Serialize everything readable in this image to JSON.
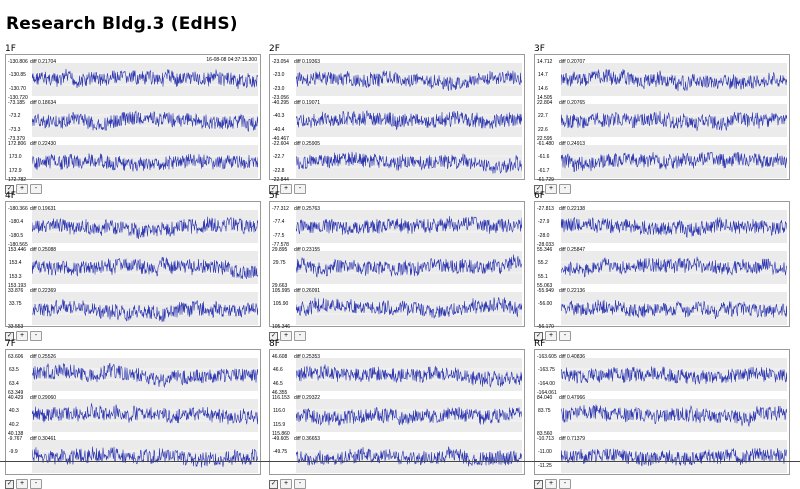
{
  "page": {
    "title": "Research Bldg.3 (EdHS)"
  },
  "colors": {
    "series": "#2d36b0",
    "panel_bg": "#ebebeb",
    "border": "#9a9a9a"
  },
  "controls": {
    "checkbox": "✓",
    "plus": "+",
    "minus": "-"
  },
  "floors": [
    {
      "label": "1F",
      "timestamp": "16-08-08 04:37:15.300",
      "rows": [
        {
          "top": "-130.806",
          "diff": "diff 0.21704",
          "labels": [
            "-130.85",
            "-130.70"
          ],
          "bottom": "-130.720"
        },
        {
          "top": "-73.185",
          "diff": "diff 0.18634",
          "labels": [
            "-73.2",
            "-73.3"
          ],
          "bottom": "-73.379"
        },
        {
          "top": "172.806",
          "diff": "diff 0.22430",
          "labels": [
            "173.0",
            "172.9"
          ],
          "bottom": "172.782"
        }
      ]
    },
    {
      "label": "2F",
      "timestamp": "",
      "rows": [
        {
          "top": "-23.054",
          "diff": "diff 0.19363",
          "labels": [
            "-23.0",
            "-23.0"
          ],
          "bottom": "-23.056"
        },
        {
          "top": "-40.295",
          "diff": "diff 0.19071",
          "labels": [
            "-40.3",
            "-40.4"
          ],
          "bottom": "-40.467"
        },
        {
          "top": "-22.604",
          "diff": "diff 0.25905",
          "labels": [
            "-22.7",
            "-22.8"
          ],
          "bottom": "-22.844"
        }
      ]
    },
    {
      "label": "3F",
      "timestamp": "",
      "rows": [
        {
          "top": "14.712",
          "diff": "diff 0.20707",
          "labels": [
            "14.7",
            "14.6"
          ],
          "bottom": "14.505"
        },
        {
          "top": "22.804",
          "diff": "diff 0.20765",
          "labels": [
            "22.7",
            "22.6"
          ],
          "bottom": "22.595"
        },
        {
          "top": "-61.480",
          "diff": "diff 0.24913",
          "labels": [
            "-61.6",
            "-61.7"
          ],
          "bottom": "-61.729"
        }
      ]
    },
    {
      "label": "4F",
      "timestamp": "",
      "rows": [
        {
          "top": "-180.366",
          "diff": "diff 0.19631",
          "labels": [
            "-180.4",
            "-180.5"
          ],
          "bottom": "-180.565"
        },
        {
          "top": "153.446",
          "diff": "diff 0.25088",
          "labels": [
            "153.4",
            "153.3"
          ],
          "bottom": "153.193"
        },
        {
          "top": "33.876",
          "diff": "diff 0.22369",
          "labels": [
            "33.75",
            ""
          ],
          "bottom": "33.553"
        }
      ]
    },
    {
      "label": "5F",
      "timestamp": "",
      "rows": [
        {
          "top": "-77.312",
          "diff": "diff 0.25763",
          "labels": [
            "-77.4",
            "-77.5"
          ],
          "bottom": "-77.578"
        },
        {
          "top": "29.895",
          "diff": "diff 0.23155",
          "labels": [
            "29.75",
            ""
          ],
          "bottom": "29.663"
        },
        {
          "top": "105.995",
          "diff": "diff 0.26091",
          "labels": [
            "105.90",
            ""
          ],
          "bottom": "105.346"
        }
      ]
    },
    {
      "label": "6F",
      "timestamp": "",
      "rows": [
        {
          "top": "-27.813",
          "diff": "diff 0.22138",
          "labels": [
            "-27.9",
            "-28.0"
          ],
          "bottom": "-28.033"
        },
        {
          "top": "55.346",
          "diff": "diff 0.25847",
          "labels": [
            "55.2",
            "55.1"
          ],
          "bottom": "55.063"
        },
        {
          "top": "-55.949",
          "diff": "diff 0.22136",
          "labels": [
            "-56.00",
            ""
          ],
          "bottom": "-56.170"
        }
      ]
    },
    {
      "label": "7F",
      "timestamp": "",
      "rows": [
        {
          "top": "63.606",
          "diff": "diff 0.25526",
          "labels": [
            "63.5",
            "63.4"
          ],
          "bottom": "63.349"
        },
        {
          "top": "40.429",
          "diff": "diff 0.29060",
          "labels": [
            "40.3",
            "40.2"
          ],
          "bottom": "40.138"
        },
        {
          "top": "-9.767",
          "diff": "diff 0.30461",
          "labels": [
            "-9.9",
            ""
          ],
          "bottom": ""
        }
      ]
    },
    {
      "label": "8F",
      "timestamp": "",
      "rows": [
        {
          "top": "46.608",
          "diff": "diff 0.25353",
          "labels": [
            "46.6",
            "46.5"
          ],
          "bottom": "46.355"
        },
        {
          "top": "116.153",
          "diff": "diff 0.29322",
          "labels": [
            "116.0",
            "115.9"
          ],
          "bottom": "115.860"
        },
        {
          "top": "-49.605",
          "diff": "diff 0.36653",
          "labels": [
            "-49.75",
            ""
          ],
          "bottom": ""
        }
      ]
    },
    {
      "label": "RF",
      "timestamp": "",
      "rows": [
        {
          "top": "-163.605",
          "diff": "diff 0.40836",
          "labels": [
            "-163.75",
            "-164.00"
          ],
          "bottom": "-164.061"
        },
        {
          "top": "84.040",
          "diff": "diff 0.47966",
          "labels": [
            "83.75",
            ""
          ],
          "bottom": "83.560"
        },
        {
          "top": "-10.713",
          "diff": "diff 0.71379",
          "labels": [
            "-11.00",
            "-11.25"
          ],
          "bottom": ""
        }
      ]
    }
  ]
}
